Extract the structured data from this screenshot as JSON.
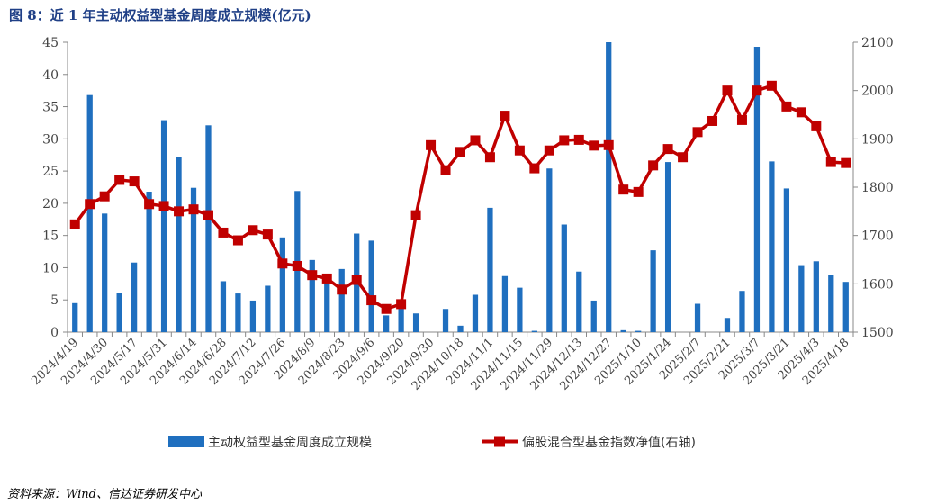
{
  "title": "图 8：近 1 年主动权益型基金周度成立规模(亿元)",
  "source": "资料来源：Wind、信达证券研发中心",
  "colors": {
    "bar": "#1f6fbf",
    "line": "#c00000",
    "title": "#1f3f86"
  },
  "chart_data": {
    "type": "bar+line",
    "x_tick_labels": [
      "2024/4/19",
      "2024/4/30",
      "2024/5/17",
      "2024/5/31",
      "2024/6/14",
      "2024/6/28",
      "2024/7/12",
      "2024/7/26",
      "2024/8/9",
      "2024/8/23",
      "2024/9/6",
      "2024/9/20",
      "2024/9/30",
      "2024/10/18",
      "2024/11/1",
      "2024/11/15",
      "2024/11/29",
      "2024/12/13",
      "2024/12/27",
      "2025/1/10",
      "2025/1/24",
      "2025/2/7",
      "2025/2/21",
      "2025/3/7",
      "2025/3/21",
      "2025/4/3",
      "2025/4/18"
    ],
    "left_axis": {
      "ylim": [
        0,
        45
      ],
      "ticks": [
        0,
        5,
        10,
        15,
        20,
        25,
        30,
        35,
        40,
        45
      ]
    },
    "right_axis": {
      "ylim": [
        1500,
        2100
      ],
      "ticks": [
        1500,
        1600,
        1700,
        1800,
        1900,
        2000,
        2100
      ]
    },
    "legend_position": "bottom",
    "series": [
      {
        "name": "主动权益型基金周度成立规模",
        "type": "bar",
        "axis": "left",
        "values": [
          4.5,
          36.8,
          18.4,
          6.1,
          10.8,
          21.8,
          32.9,
          27.2,
          22.4,
          32.1,
          7.9,
          6.0,
          4.9,
          7.2,
          14.7,
          21.9,
          11.2,
          8.9,
          9.8,
          15.3,
          14.2,
          2.6,
          4.5,
          2.9,
          0,
          3.6,
          1.0,
          5.8,
          19.3,
          8.7,
          6.9,
          0.2,
          25.4,
          16.7,
          9.4,
          4.9,
          45.0,
          0.3,
          0.2,
          12.7,
          26.4,
          0,
          4.4,
          0,
          2.2,
          6.4,
          44.3,
          26.5,
          22.3,
          10.4,
          11.0,
          8.9,
          7.8
        ]
      },
      {
        "name": "偏股混合型基金指数净值(右轴)",
        "type": "line",
        "axis": "right",
        "values": [
          1723,
          1765,
          1781,
          1815,
          1812,
          1765,
          1761,
          1750,
          1754,
          1742,
          1706,
          1690,
          1711,
          1702,
          1642,
          1637,
          1618,
          1611,
          1588,
          1608,
          1566,
          1548,
          1558,
          1742,
          1887,
          1835,
          1873,
          1897,
          1862,
          1948,
          1876,
          1839,
          1876,
          1897,
          1898,
          1886,
          1887,
          1795,
          1790,
          1845,
          1879,
          1862,
          1914,
          1937,
          2000,
          1939,
          2000,
          2010,
          1967,
          1955,
          1926,
          1852,
          1850
        ]
      }
    ]
  }
}
